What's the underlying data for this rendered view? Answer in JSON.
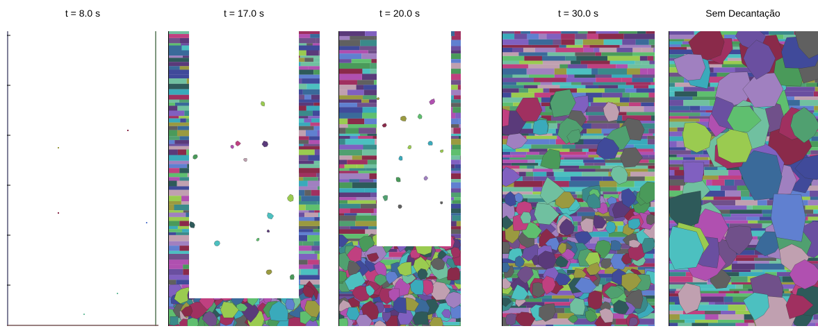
{
  "panels": [
    {
      "title": "t = 8.0 s"
    },
    {
      "title": "t = 17.0 s"
    },
    {
      "title": "t = 20.0 s"
    },
    {
      "title": "t  = 30.0 s"
    },
    {
      "title": "Sem Decantação"
    }
  ]
}
